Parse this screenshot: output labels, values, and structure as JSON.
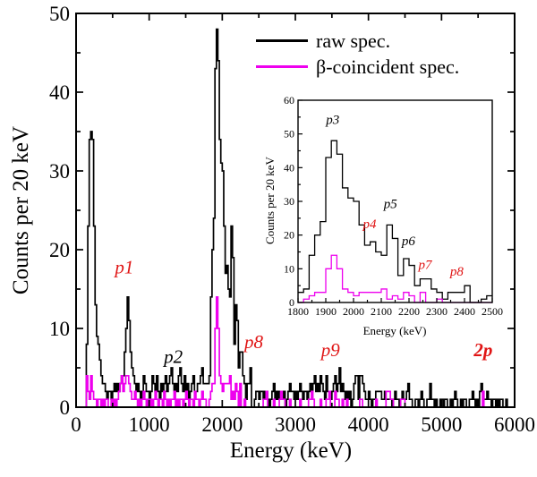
{
  "figure": {
    "background": "#ffffff",
    "annotation_red": "#e01515",
    "annotation_black": "#000000"
  },
  "chart_data": [
    {
      "id": "main",
      "type": "line",
      "subtype": "step-histogram",
      "title": "",
      "xlabel": "Energy (keV)",
      "ylabel": "Counts per 20 keV",
      "xlim": [
        0,
        6000
      ],
      "ylim": [
        0,
        50
      ],
      "xticks": [
        0,
        1000,
        2000,
        3000,
        4000,
        5000,
        6000
      ],
      "yticks": [
        0,
        10,
        20,
        30,
        40,
        50
      ],
      "bin_width_kev": 20,
      "grid": false,
      "legend_position": "top-right-inside",
      "series": [
        {
          "name": "raw spec.",
          "color": "#000000",
          "values": [
            0,
            0,
            0,
            0,
            0,
            0,
            0,
            8,
            23,
            34,
            35,
            34,
            23,
            13,
            9,
            8,
            6,
            4,
            3,
            3,
            2,
            1,
            2,
            2,
            1,
            2,
            3,
            2,
            3,
            2,
            3,
            4,
            4,
            7,
            10,
            14,
            11,
            7,
            5,
            4,
            3,
            2,
            3,
            2,
            1,
            2,
            4,
            3,
            2,
            2,
            1,
            2,
            4,
            3,
            2,
            4,
            2,
            1,
            3,
            2,
            3,
            4,
            2,
            3,
            4,
            5,
            3,
            2,
            3,
            2,
            4,
            5,
            3,
            2,
            4,
            2,
            3,
            1,
            2,
            3,
            4,
            2,
            2,
            3,
            3,
            4,
            5,
            3,
            3,
            3,
            3,
            4,
            14,
            20,
            24,
            43,
            48,
            44,
            34,
            31,
            30,
            23,
            17,
            18,
            15,
            14,
            23,
            19,
            8,
            13,
            11,
            5,
            7,
            7,
            4,
            3,
            1,
            3,
            3,
            5,
            0,
            0,
            1,
            2,
            2,
            1,
            2,
            2,
            1,
            2,
            2,
            1,
            0,
            1,
            2,
            3,
            1,
            2,
            1,
            2,
            2,
            1,
            2,
            0,
            1,
            2,
            3,
            2,
            2,
            1,
            2,
            1,
            2,
            3,
            2,
            1,
            2,
            2,
            1,
            2,
            3,
            2,
            3,
            4,
            2,
            3,
            2,
            4,
            3,
            2,
            1,
            4,
            2,
            2,
            1,
            2,
            3,
            4,
            2,
            3,
            5,
            2,
            3,
            2,
            1,
            2,
            1,
            2,
            0,
            1,
            3,
            4,
            4,
            1,
            4,
            4,
            3,
            2,
            1,
            1,
            2,
            1,
            0,
            1,
            1,
            2,
            2,
            2,
            2,
            1,
            1,
            2,
            1,
            1,
            1,
            1,
            0,
            1,
            2,
            1,
            1,
            0,
            1,
            2,
            1,
            1,
            2,
            3,
            1,
            1,
            0,
            0,
            1,
            1,
            0,
            1,
            2,
            1,
            0,
            0,
            1,
            1,
            3,
            1,
            1,
            0,
            1,
            0,
            0,
            1,
            1,
            0,
            1,
            1,
            0,
            0,
            1,
            0,
            1,
            2,
            1,
            0,
            0,
            1,
            0,
            1,
            1,
            0,
            0,
            1,
            1,
            2,
            1,
            0,
            1,
            0,
            2,
            3,
            2,
            1,
            1,
            2,
            1,
            1,
            0,
            1,
            1,
            0,
            1,
            0,
            1,
            1,
            0,
            0,
            1,
            0,
            0,
            0,
            0,
            0
          ]
        },
        {
          "name": "β-coincident spec.",
          "color": "#ee00ee",
          "values": [
            0,
            0,
            0,
            0,
            0,
            0,
            0,
            4,
            2,
            1,
            4,
            2,
            1,
            1,
            0,
            1,
            1,
            0,
            1,
            0,
            1,
            1,
            0,
            0,
            1,
            0,
            1,
            0,
            1,
            2,
            3,
            4,
            2,
            3,
            4,
            4,
            3,
            2,
            1,
            1,
            2,
            1,
            0,
            1,
            0,
            1,
            2,
            1,
            0,
            1,
            0,
            1,
            0,
            1,
            2,
            1,
            0,
            1,
            1,
            0,
            2,
            1,
            0,
            1,
            0,
            1,
            1,
            2,
            0,
            1,
            0,
            1,
            1,
            0,
            1,
            2,
            1,
            0,
            1,
            1,
            0,
            2,
            1,
            1,
            0,
            1,
            2,
            1,
            1,
            0,
            0,
            1,
            2,
            3,
            3,
            10,
            14,
            10,
            4,
            3,
            2,
            3,
            3,
            3,
            3,
            4,
            1,
            2,
            1,
            3,
            2,
            0,
            3,
            0,
            0,
            1,
            0,
            0,
            0,
            0,
            0,
            0,
            0,
            0,
            0,
            0,
            0,
            0,
            1,
            1,
            2,
            0,
            0,
            0,
            0,
            1,
            0,
            0,
            0,
            1,
            2,
            1,
            1,
            0,
            0,
            0,
            1,
            0,
            0,
            0,
            0,
            0,
            0,
            1,
            0,
            0,
            0,
            0,
            0,
            1,
            1,
            2,
            1,
            0,
            0,
            0,
            0,
            1,
            0,
            0,
            0,
            1,
            1,
            2,
            0,
            0,
            0,
            2,
            1,
            1,
            0,
            0,
            1,
            0,
            0,
            1,
            0,
            0,
            0,
            0,
            0,
            0,
            0,
            0,
            1,
            1,
            0,
            0,
            0,
            0,
            0,
            0,
            0,
            0,
            0,
            1,
            0,
            0,
            0,
            0,
            0,
            0,
            2,
            2,
            2,
            1,
            1,
            0,
            0,
            0,
            0,
            0,
            1,
            1,
            1,
            0,
            0,
            0,
            0,
            0,
            0,
            0,
            0,
            0,
            0,
            0,
            0,
            0,
            0,
            0,
            0,
            0,
            0,
            0,
            0,
            0,
            0,
            0,
            0,
            0,
            0,
            0,
            0,
            0,
            0,
            0,
            0,
            0,
            0,
            0,
            0,
            0,
            0,
            0,
            0,
            0,
            0,
            0,
            0,
            0,
            0,
            0,
            0,
            0,
            0,
            0,
            0,
            0,
            2,
            0,
            0,
            0,
            0,
            0,
            0,
            0,
            0,
            0,
            0,
            0,
            0,
            0,
            0,
            0,
            0,
            0,
            0,
            0,
            0,
            0
          ]
        }
      ],
      "annotations": [
        {
          "text": "p1",
          "x": 660,
          "y": 17,
          "color": "#e01515",
          "bold": false
        },
        {
          "text": "p2",
          "x": 1330,
          "y": 5.6,
          "color": "#000000",
          "bold": false
        },
        {
          "text": "p8",
          "x": 2430,
          "y": 7.5,
          "color": "#e01515",
          "bold": false
        },
        {
          "text": "p9",
          "x": 3480,
          "y": 6.5,
          "color": "#e01515",
          "bold": false
        },
        {
          "text": "2p",
          "x": 5570,
          "y": 6.5,
          "color": "#e01515",
          "bold": true
        }
      ]
    },
    {
      "id": "inset",
      "type": "line",
      "subtype": "step-histogram",
      "title": "",
      "xlabel": "Energy (keV)",
      "ylabel": "Counts per 20 keV",
      "xlim": [
        1800,
        2500
      ],
      "ylim": [
        0,
        60
      ],
      "xticks": [
        1800,
        1900,
        2000,
        2100,
        2200,
        2300,
        2400,
        2500
      ],
      "yticks": [
        0,
        10,
        20,
        30,
        40,
        50,
        60
      ],
      "bin_width_kev": 20,
      "grid": false,
      "series": [
        {
          "name": "raw spec.",
          "color": "#000000",
          "values": [
            3,
            4,
            14,
            20,
            24,
            43,
            48,
            44,
            34,
            31,
            30,
            23,
            17,
            18,
            15,
            14,
            23,
            19,
            8,
            13,
            11,
            5,
            7,
            7,
            4,
            3,
            1,
            3,
            3,
            3,
            5,
            0,
            0,
            1,
            2
          ]
        },
        {
          "name": "β-coincident spec.",
          "color": "#ee00ee",
          "values": [
            0,
            1,
            2,
            3,
            3,
            10,
            14,
            10,
            4,
            3,
            2,
            3,
            3,
            3,
            3,
            4,
            1,
            2,
            1,
            3,
            2,
            0,
            3,
            0,
            0,
            1,
            0,
            0,
            0,
            0,
            0,
            0,
            0,
            0,
            0
          ]
        }
      ],
      "annotations": [
        {
          "text": "p3",
          "x": 1925,
          "y": 53,
          "color": "#000000",
          "bold": false
        },
        {
          "text": "p4",
          "x": 2058,
          "y": 22,
          "color": "#e01515",
          "bold": false
        },
        {
          "text": "p5",
          "x": 2133,
          "y": 28,
          "color": "#000000",
          "bold": false
        },
        {
          "text": "p6",
          "x": 2198,
          "y": 17,
          "color": "#000000",
          "bold": false
        },
        {
          "text": "p7",
          "x": 2258,
          "y": 10,
          "color": "#e01515",
          "bold": false
        },
        {
          "text": "p8",
          "x": 2372,
          "y": 8,
          "color": "#e01515",
          "bold": false
        }
      ]
    }
  ]
}
